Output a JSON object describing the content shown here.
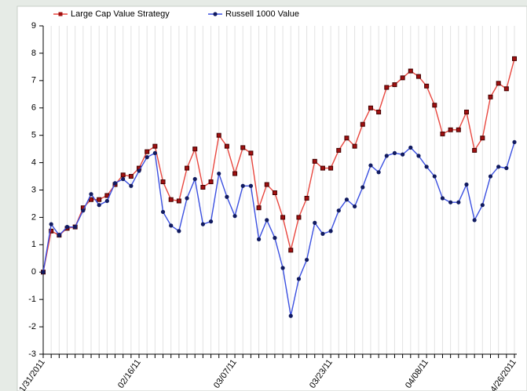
{
  "chart_data": {
    "type": "line",
    "categories": [
      "1/31/2011",
      null,
      null,
      null,
      null,
      null,
      null,
      null,
      null,
      null,
      null,
      null,
      "02/16/11",
      null,
      null,
      null,
      null,
      null,
      null,
      null,
      null,
      null,
      null,
      null,
      "03/07/11",
      null,
      null,
      null,
      null,
      null,
      null,
      null,
      null,
      null,
      null,
      null,
      "03/23/11",
      null,
      null,
      null,
      null,
      null,
      null,
      null,
      null,
      null,
      null,
      null,
      "04/08/11",
      null,
      null,
      null,
      null,
      null,
      null,
      null,
      null,
      null,
      null,
      "4/26/2011"
    ],
    "series": [
      {
        "name": "Large Cap Value Strategy",
        "color": "#e8473f",
        "marker_color": "#a01010",
        "marker": "square",
        "values": [
          0,
          1.5,
          1.35,
          1.6,
          1.65,
          2.35,
          2.65,
          2.65,
          2.8,
          3.2,
          3.55,
          3.5,
          3.8,
          4.4,
          4.6,
          3.3,
          2.65,
          2.6,
          3.8,
          4.5,
          3.1,
          3.3,
          5.0,
          4.6,
          3.6,
          4.55,
          4.35,
          2.35,
          3.2,
          2.9,
          2.0,
          0.8,
          2.0,
          2.7,
          4.05,
          3.8,
          3.8,
          4.45,
          4.9,
          4.6,
          5.4,
          6.0,
          5.85,
          6.75,
          6.85,
          7.1,
          7.35,
          7.15,
          6.8,
          6.1,
          5.05,
          5.2,
          5.2,
          5.85,
          4.45,
          4.9,
          6.4,
          6.9,
          6.7,
          7.8
        ]
      },
      {
        "name": "Russell 1000 Value",
        "color": "#3a4fe0",
        "marker_color": "#101a60",
        "marker": "circle",
        "values": [
          0,
          1.75,
          1.35,
          1.65,
          1.65,
          2.25,
          2.85,
          2.45,
          2.6,
          3.25,
          3.4,
          3.15,
          3.7,
          4.2,
          4.35,
          2.2,
          1.7,
          1.5,
          2.7,
          3.4,
          1.75,
          1.85,
          3.6,
          2.75,
          2.05,
          3.15,
          3.15,
          1.2,
          1.9,
          1.25,
          0.15,
          -1.6,
          -0.25,
          0.45,
          1.8,
          1.4,
          1.5,
          2.25,
          2.65,
          2.4,
          3.1,
          3.9,
          3.65,
          4.25,
          4.35,
          4.3,
          4.55,
          4.25,
          3.85,
          3.5,
          2.7,
          2.55,
          2.55,
          3.2,
          1.9,
          2.45,
          3.5,
          3.85,
          3.8,
          4.75
        ]
      }
    ],
    "ylim": [
      -3,
      9
    ],
    "yticks": [
      -3,
      -2,
      -1,
      0,
      1,
      2,
      3,
      4,
      5,
      6,
      7,
      8,
      9
    ],
    "grid": true,
    "legend": "top"
  }
}
